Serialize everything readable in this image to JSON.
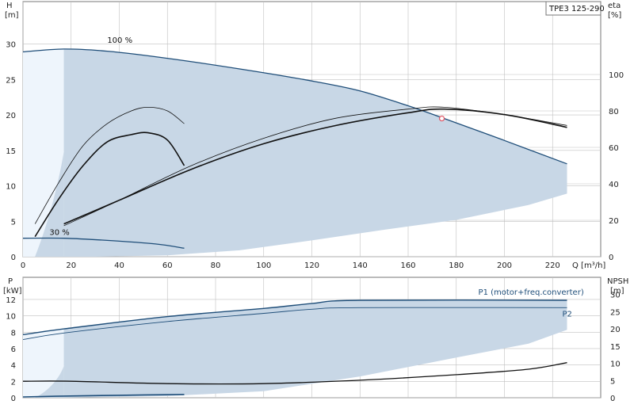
{
  "model_label": "TPE3 125-290",
  "chart_data": [
    {
      "type": "line",
      "title": "",
      "xlabel": "Q [m³/h]",
      "ylabel_left": "H\n[m]",
      "ylabel_right": "eta\n[%]",
      "xlim": [
        0,
        240
      ],
      "ylim_left": [
        0,
        36
      ],
      "ylim_right": [
        0,
        140
      ],
      "x_ticks": [
        "0",
        "20",
        "40",
        "60",
        "80",
        "100",
        "120",
        "140",
        "160",
        "180",
        "200",
        "220"
      ],
      "y_ticks_left": [
        "0",
        "5",
        "10",
        "15",
        "20",
        "25",
        "30"
      ],
      "y_ticks_right": [
        "0",
        "20",
        "40",
        "60",
        "80",
        "100"
      ],
      "grid": true,
      "colors": {
        "envelope": "#c8d7e6",
        "grid": "#c0c0c0",
        "max_curve": "#1f4e79",
        "eta": "#111111"
      },
      "annotations": [
        {
          "text": "100 %",
          "x": 35,
          "y": 30.2
        },
        {
          "text": "30 %",
          "x": 11,
          "y": 3.1
        }
      ],
      "operating_point": {
        "x": 174,
        "y": 19.5
      },
      "series": [
        {
          "role": "H_max",
          "x": [
            0,
            17,
            35,
            60,
            90,
            120,
            140,
            160,
            175,
            200,
            226
          ],
          "y": [
            28.9,
            29.3,
            29.0,
            28.0,
            26.5,
            24.8,
            23.4,
            21.3,
            19.5,
            16.4,
            13.1
          ]
        },
        {
          "role": "H_min",
          "x": [
            0,
            17,
            35,
            55,
            67
          ],
          "y": [
            2.6,
            2.6,
            2.3,
            1.8,
            1.2
          ]
        },
        {
          "role": "envelope_bottom",
          "x": [
            17,
            30,
            60,
            90,
            120,
            150,
            180,
            210,
            226
          ],
          "y": [
            0,
            0,
            0.2,
            0.9,
            2.3,
            3.8,
            5.2,
            7.3,
            8.9
          ]
        },
        {
          "role": "eta_100",
          "x": [
            17,
            40,
            70,
            100,
            130,
            160,
            175,
            200,
            226
          ],
          "y": [
            18,
            31,
            48,
            62,
            72,
            79,
            81,
            78,
            71
          ]
        },
        {
          "role": "eta_100_upper",
          "x": [
            17,
            40,
            70,
            100,
            130,
            160,
            175,
            200,
            226
          ],
          "y": [
            17,
            31,
            50,
            65,
            76,
            81,
            82,
            78,
            72
          ]
        },
        {
          "role": "eta_50",
          "x": [
            5,
            15,
            25,
            35,
            45,
            52,
            60,
            67
          ],
          "y": [
            11,
            32,
            50,
            63,
            67,
            68,
            64,
            50
          ]
        },
        {
          "role": "eta_50_upper",
          "x": [
            5,
            15,
            25,
            35,
            45,
            52,
            60,
            67
          ],
          "y": [
            18,
            41,
            61,
            73,
            80,
            82,
            80,
            73
          ]
        }
      ]
    },
    {
      "type": "line",
      "title": "",
      "xlabel": "",
      "ylabel_left": "P\n[kW]",
      "ylabel_right": "NPSH\n[m]",
      "xlim": [
        0,
        240
      ],
      "ylim_left": [
        0,
        14.7
      ],
      "ylim_right": [
        0,
        35
      ],
      "y_ticks_left": [
        "0",
        "2",
        "4",
        "6",
        "8",
        "10",
        "12"
      ],
      "y_ticks_right": [
        "0",
        "5",
        "10",
        "15",
        "20",
        "25",
        "30"
      ],
      "grid": true,
      "series": [
        {
          "name": "P1 (motor+freq.converter)",
          "role": "P1",
          "x": [
            0,
            17,
            60,
            100,
            120,
            140,
            226
          ],
          "y": [
            7.7,
            8.4,
            9.9,
            10.9,
            11.5,
            11.9,
            11.9
          ]
        },
        {
          "name": "P2",
          "role": "P2",
          "x": [
            0,
            17,
            60,
            100,
            120,
            140,
            226
          ],
          "y": [
            7.1,
            7.9,
            9.3,
            10.3,
            10.8,
            11.0,
            11.0
          ]
        },
        {
          "role": "P_envelope_bottom",
          "x": [
            17,
            60,
            100,
            140,
            180,
            210,
            226
          ],
          "y": [
            0,
            0.2,
            0.8,
            2.6,
            4.9,
            6.6,
            8.3
          ]
        },
        {
          "role": "P_min",
          "x": [
            0,
            17,
            40,
            67
          ],
          "y": [
            0.1,
            0.2,
            0.3,
            0.4
          ]
        },
        {
          "role": "NPSH",
          "x": [
            0,
            20,
            60,
            100,
            140,
            180,
            210,
            226
          ],
          "y": [
            4.8,
            4.8,
            4.1,
            4.1,
            5.1,
            6.7,
            8.3,
            10.2
          ]
        }
      ]
    }
  ]
}
